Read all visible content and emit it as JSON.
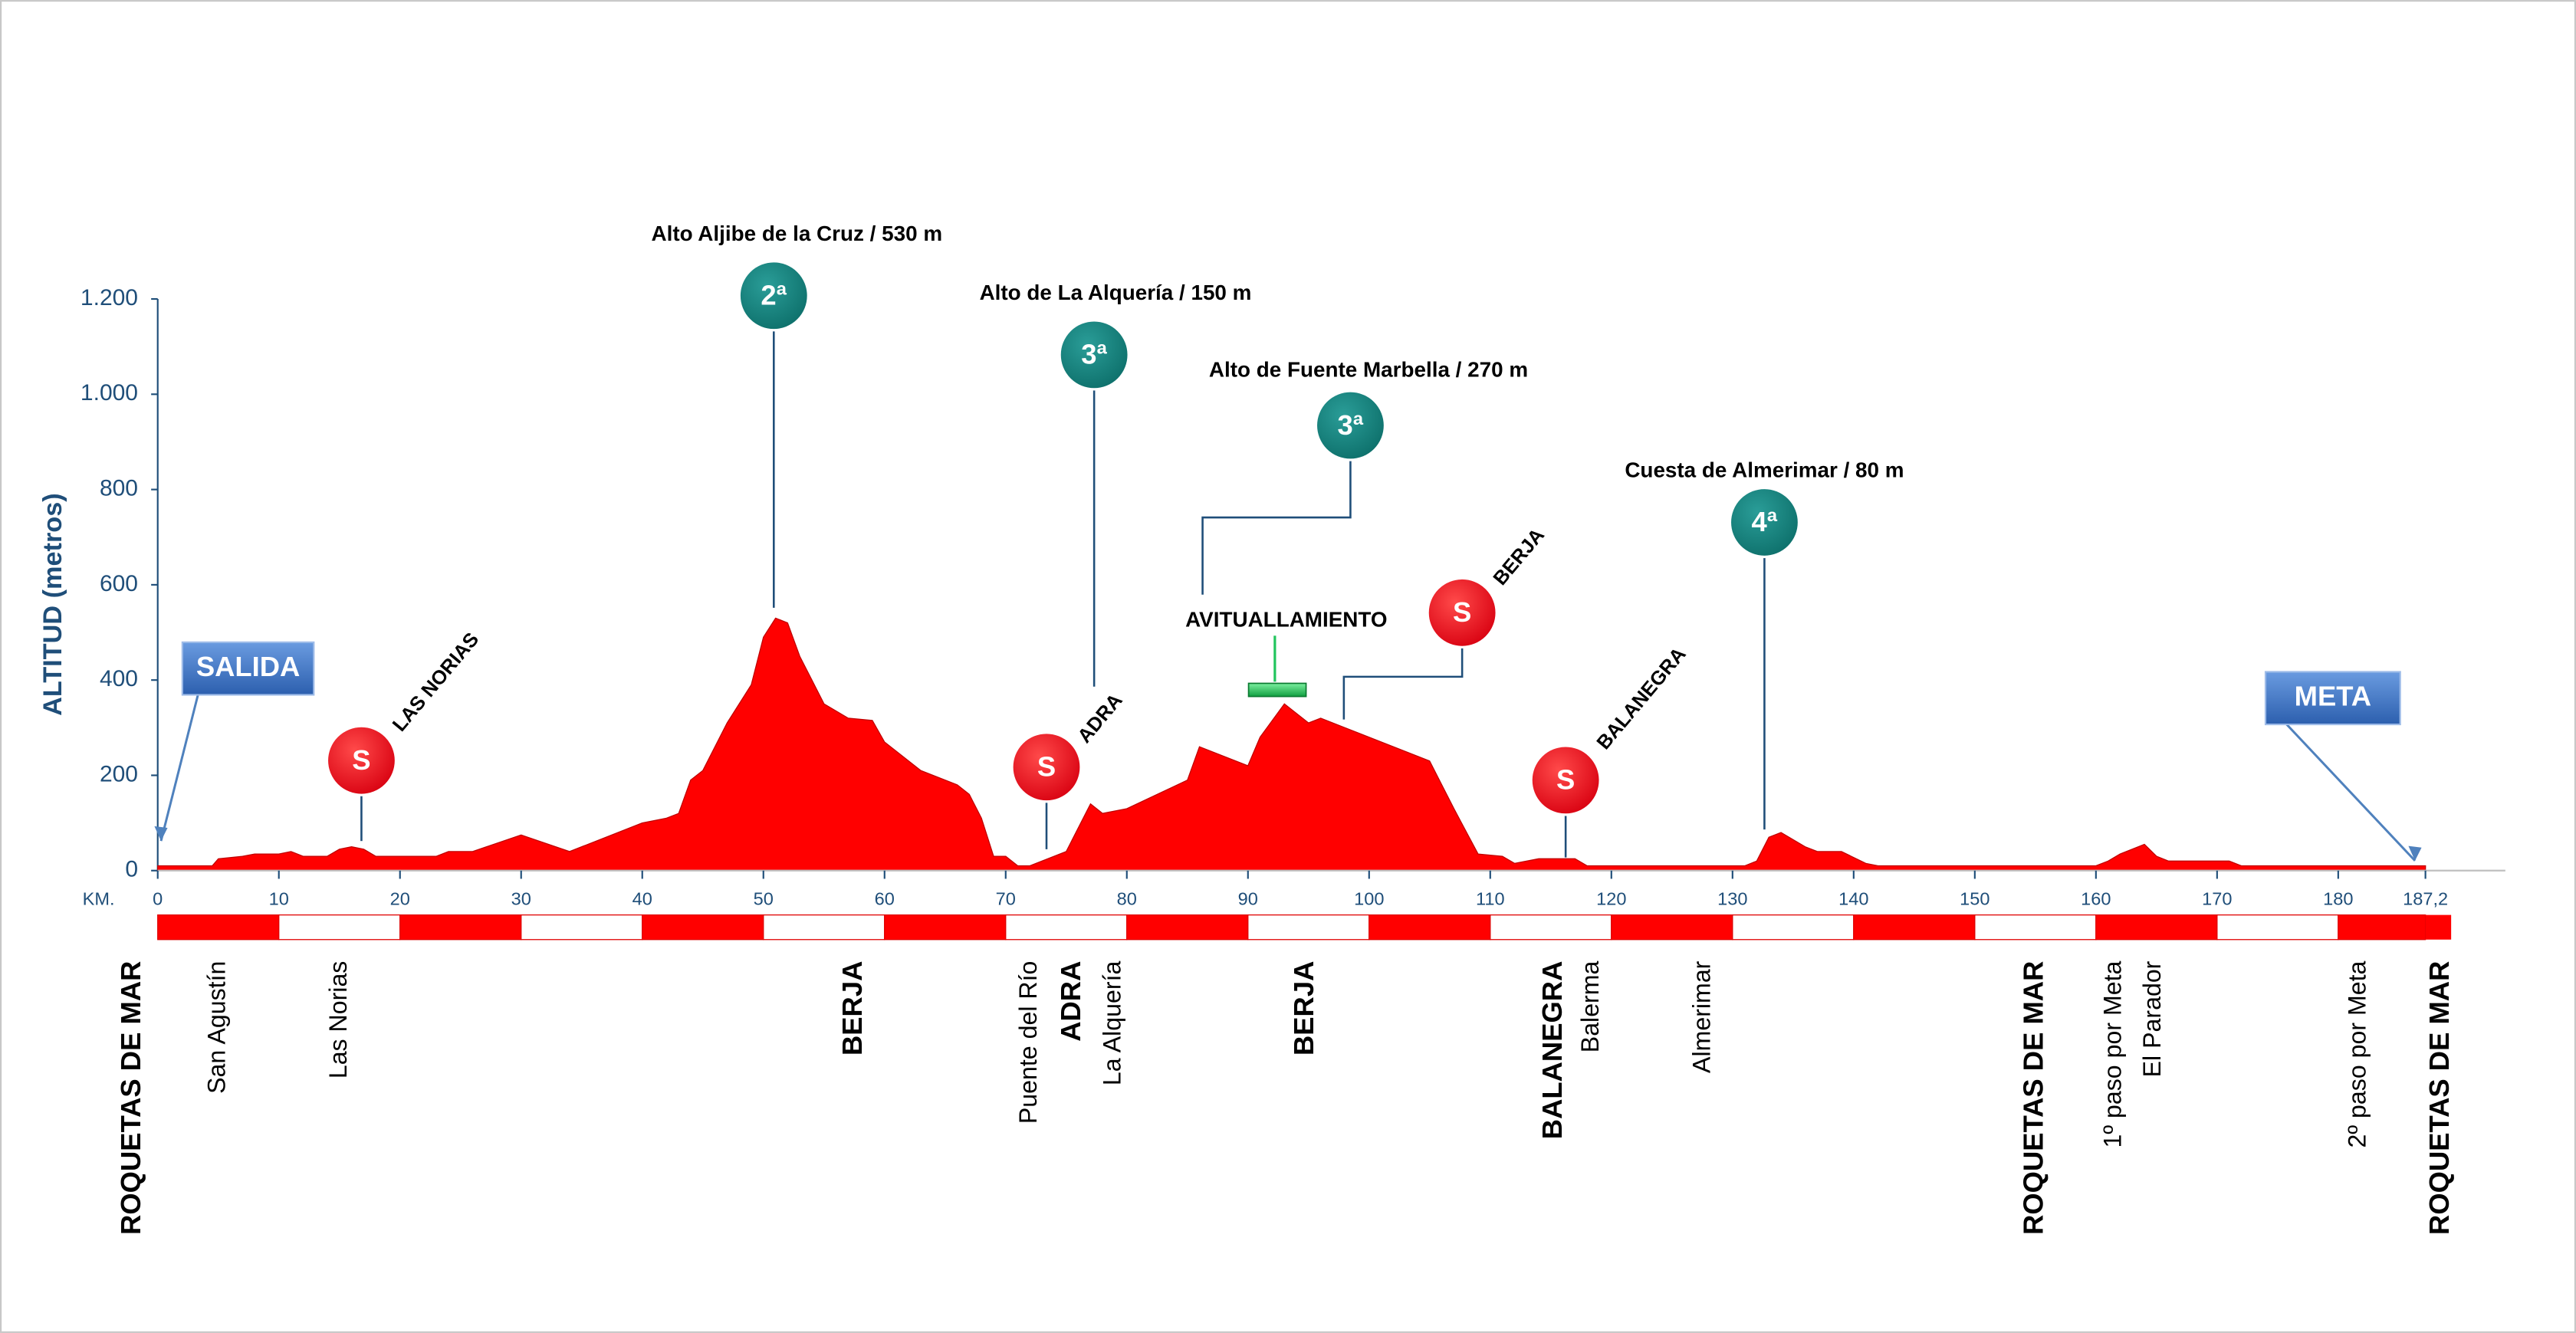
{
  "chart_data": {
    "type": "area",
    "y_label": "ALTITUD (metros)",
    "x_label": "KM.",
    "color": "#ff0000",
    "x": [
      0,
      4.5,
      5,
      7,
      8,
      10,
      11,
      12,
      14,
      15,
      16,
      17,
      18,
      23,
      24,
      26,
      30,
      34,
      40,
      42,
      43,
      44,
      45,
      47,
      49,
      50,
      51,
      52,
      53,
      55,
      57,
      59,
      60,
      63,
      66,
      67,
      68,
      69,
      70,
      71,
      72,
      75,
      77,
      78,
      80,
      85,
      86,
      90,
      91,
      93,
      95,
      96,
      98,
      105,
      107,
      109,
      111,
      112,
      114,
      117,
      118,
      131,
      132,
      133,
      134,
      136,
      137,
      139,
      141,
      142,
      160,
      161,
      162,
      164,
      165,
      166,
      171,
      172,
      187.2
    ],
    "values": [
      10,
      10,
      25,
      30,
      35,
      35,
      40,
      30,
      30,
      45,
      50,
      45,
      30,
      30,
      40,
      40,
      75,
      40,
      100,
      110,
      120,
      190,
      210,
      310,
      390,
      490,
      530,
      520,
      450,
      350,
      320,
      315,
      270,
      210,
      180,
      160,
      110,
      30,
      30,
      10,
      10,
      40,
      140,
      120,
      130,
      190,
      260,
      220,
      280,
      350,
      310,
      320,
      300,
      230,
      130,
      35,
      30,
      15,
      25,
      25,
      10,
      10,
      20,
      70,
      80,
      50,
      40,
      40,
      15,
      10,
      10,
      20,
      35,
      55,
      30,
      20,
      20,
      10,
      10
    ],
    "xlim": [
      0,
      190
    ],
    "ylim": [
      0,
      1200
    ],
    "xticks": [
      0,
      10,
      20,
      30,
      40,
      50,
      60,
      70,
      80,
      90,
      100,
      110,
      120,
      130,
      140,
      150,
      160,
      170,
      180,
      {
        "value": 187.2,
        "label": "187,2"
      }
    ],
    "yticks": [
      0,
      200,
      400,
      600,
      800,
      {
        "value": 1000,
        "label": "1.000"
      },
      {
        "value": 1200,
        "label": "1.200"
      }
    ],
    "start_label": "SALIDA",
    "finish_label": "META",
    "feed_zone": "AVITUALLAMIENTO",
    "climbs": [
      {
        "name": "Alto Aljibe de la Cruz / 530 m",
        "category": "2ª"
      },
      {
        "name": "Alto de La Alquería / 150 m",
        "category": "3ª"
      },
      {
        "name": "Alto de Fuente Marbella / 270 m",
        "category": "3ª"
      },
      {
        "name": "Cuesta de Almerimar / 80 m",
        "category": "4ª"
      }
    ],
    "sprints": [
      {
        "symbol": "S",
        "name": "LAS NORIAS"
      },
      {
        "symbol": "S",
        "name": "ADRA"
      },
      {
        "symbol": "S",
        "name": "BERJA"
      },
      {
        "symbol": "S",
        "name": "BALANEGRA"
      }
    ],
    "towns": [
      {
        "name": "ROQUETAS DE MAR",
        "major": true
      },
      {
        "name": "San Agustín",
        "major": false
      },
      {
        "name": "Las Norias",
        "major": false
      },
      {
        "name": "BERJA",
        "major": true
      },
      {
        "name": "Puente del Río",
        "major": false
      },
      {
        "name": "ADRA",
        "major": true
      },
      {
        "name": "La Alquería",
        "major": false
      },
      {
        "name": "BERJA",
        "major": true
      },
      {
        "name": "BALANEGRA",
        "major": true
      },
      {
        "name": "Balerma",
        "major": false
      },
      {
        "name": "Almerimar",
        "major": false
      },
      {
        "name": "ROQUETAS DE MAR",
        "major": true
      },
      {
        "name": "1º paso por Meta",
        "major": false
      },
      {
        "name": "El Parador",
        "major": false
      },
      {
        "name": "2º paso por Meta",
        "major": false
      },
      {
        "name": "ROQUETAS DE MAR",
        "major": true
      }
    ]
  }
}
